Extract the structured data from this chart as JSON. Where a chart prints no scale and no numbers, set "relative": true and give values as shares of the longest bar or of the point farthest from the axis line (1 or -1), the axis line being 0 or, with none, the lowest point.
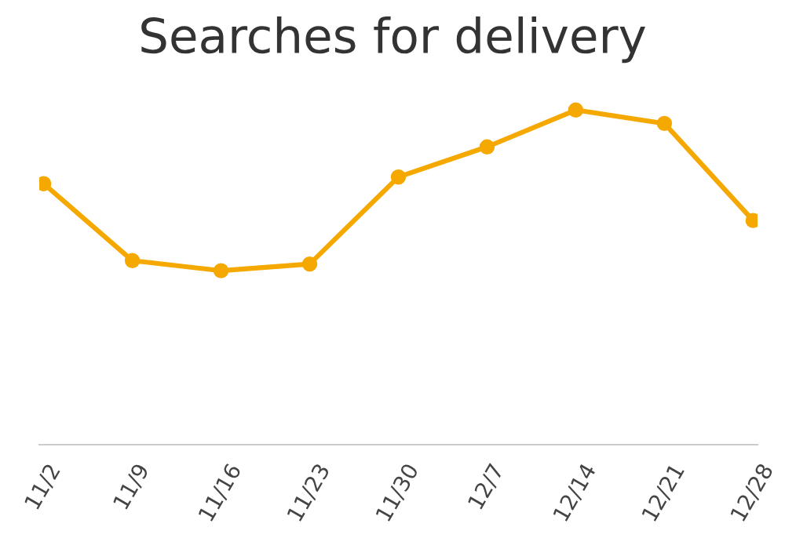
{
  "chart_data": {
    "type": "line",
    "title": "Searches for delivery",
    "relative": true,
    "categories": [
      "11/2",
      "11/9",
      "11/16",
      "11/23",
      "11/30",
      "12/7",
      "12/14",
      "12/21",
      "12/28"
    ],
    "series": [
      {
        "color": "#f5a800",
        "values": [
          0.78,
          0.55,
          0.52,
          0.54,
          0.8,
          0.89,
          1,
          0.96,
          0.67
        ]
      }
    ],
    "marker": "circle",
    "line_style": "solid"
  }
}
